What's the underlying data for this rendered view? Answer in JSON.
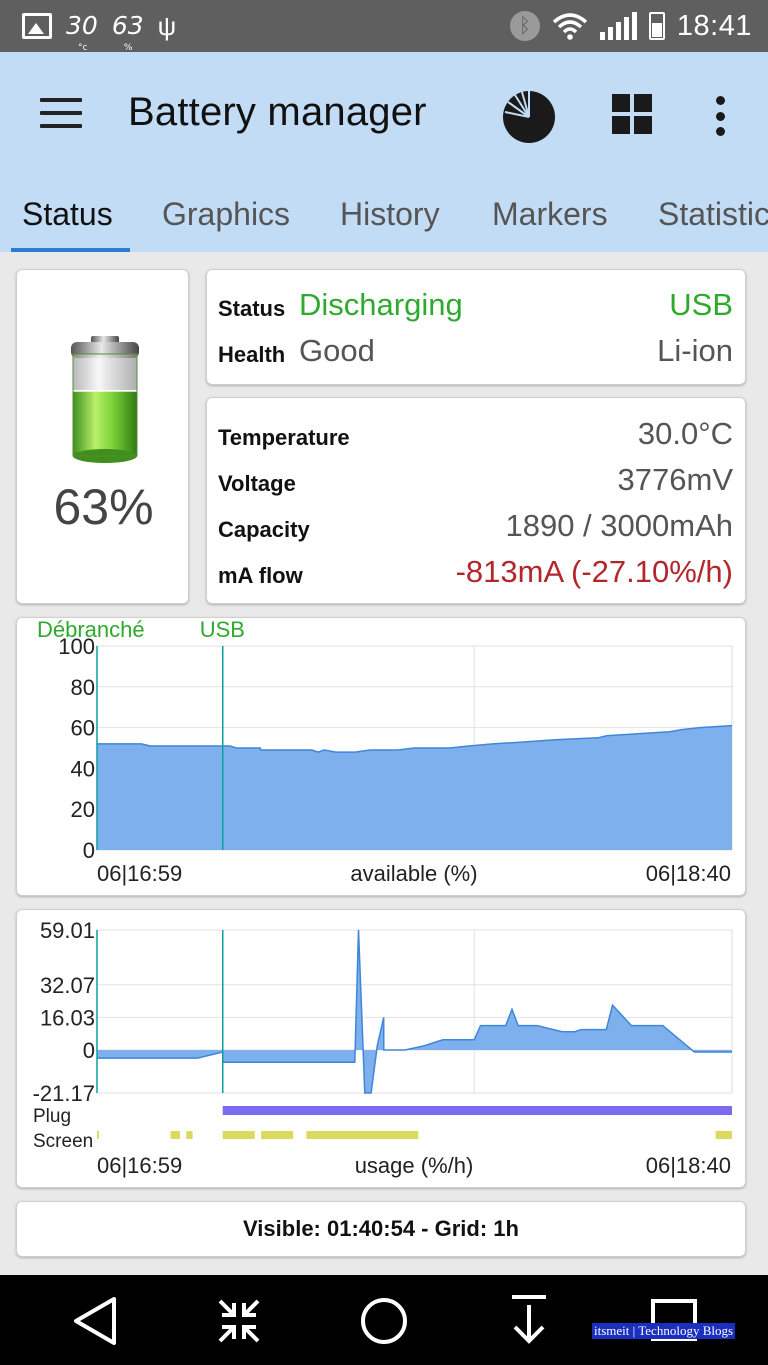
{
  "status_bar": {
    "temp_value": "30",
    "temp_unit": "°c",
    "battery_value": "63",
    "battery_unit": "%",
    "time": "18:41"
  },
  "app_bar": {
    "title": "Battery manager",
    "icons": [
      "menu-icon",
      "pie-chart-icon",
      "grid-icon",
      "more-vert-icon"
    ]
  },
  "tabs": [
    {
      "label": "Status",
      "active": true
    },
    {
      "label": "Graphics",
      "active": false
    },
    {
      "label": "History",
      "active": false
    },
    {
      "label": "Markers",
      "active": false
    },
    {
      "label": "Statistics",
      "active": false
    }
  ],
  "battery": {
    "percent_text": "63%",
    "level": 0.63
  },
  "status": {
    "status_label": "Status",
    "status_value": "Discharging",
    "source": "USB",
    "health_label": "Health",
    "health_value": "Good",
    "type": "Li-ion"
  },
  "info": {
    "temperature_label": "Temperature",
    "temperature_value": "30.0°C",
    "voltage_label": "Voltage",
    "voltage_value": "3776mV",
    "capacity_label": "Capacity",
    "capacity_value": "1890 / 3000mAh",
    "maflow_label": "mA flow",
    "maflow_value": "-813mA (-27.10%/h)"
  },
  "colors": {
    "accent": "#2b7cd6",
    "green": "#2eaa2e",
    "red": "#b3262a",
    "chart_fill": "#7fb0ee",
    "chart_line": "#3f86d8",
    "plug_bar": "#7b6bf0",
    "screen_bar": "#dada5e",
    "marker": "#0aa0a0"
  },
  "chart_data": [
    {
      "type": "area",
      "xlabel": "available (%)",
      "x_start_label": "06|16:59",
      "x_end_label": "06|18:40",
      "x_minutes": [
        0,
        3.58,
        6.85,
        7.07,
        8.48,
        11.85,
        14.37,
        18.11,
        19.38,
        21.15,
        22.17,
        23.22,
        25.95,
        26.02,
        28.27,
        30.56,
        34.11,
        35.21,
        36.1,
        38.02,
        41.06,
        43.42,
        45.26,
        47.85,
        50.45,
        53.04,
        56.1,
        59.14,
        62.97,
        68.11,
        72.96,
        79.7,
        81.05,
        86.04,
        91.07,
        93.02,
        95.93,
        101
      ],
      "values": [
        52,
        52,
        52,
        52,
        51,
        51,
        51,
        51,
        51,
        51,
        50,
        50,
        50,
        49,
        49,
        49,
        49,
        48,
        49,
        48,
        48,
        49,
        49,
        49,
        50,
        50,
        50,
        51,
        52,
        53,
        54,
        55,
        56,
        57,
        58,
        59,
        60,
        61
      ],
      "ylim": [
        0,
        100
      ],
      "yticks": [
        0,
        20,
        40,
        60,
        80,
        100
      ],
      "markers": [
        {
          "label": "Débranché",
          "x_minutes": 0
        },
        {
          "label": "USB",
          "x_minutes": 20
        }
      ]
    },
    {
      "type": "area",
      "xlabel": "usage (%/h)",
      "x_start_label": "06|16:59",
      "x_end_label": "06|18:40",
      "x_minutes": [
        0,
        16,
        20,
        20.01,
        41,
        41.6,
        42.6,
        43.6,
        44.6,
        45.6,
        45.61,
        49,
        52,
        55,
        60,
        61,
        65,
        66,
        67,
        70,
        74,
        76,
        77,
        81,
        82,
        85,
        90,
        95,
        101
      ],
      "values": [
        -4,
        -4,
        -1,
        -6,
        -6,
        59.01,
        -21.17,
        -21.17,
        2.5,
        16.03,
        0,
        0,
        2,
        5,
        5,
        12,
        12,
        20,
        12,
        12,
        9,
        9,
        10,
        10,
        22,
        12,
        12,
        -1,
        -1
      ],
      "ylim": [
        -21.17,
        59.01
      ],
      "yticks": [
        -21.17,
        0,
        16.03,
        32.07,
        59.01
      ],
      "plug_label": "Plug",
      "screen_label": "Screen",
      "plug_on": [
        [
          20,
          101
        ]
      ],
      "screen_on": [
        [
          0,
          0.3
        ],
        [
          11.7,
          13.2
        ],
        [
          14.2,
          15.2
        ],
        [
          20,
          25.1
        ],
        [
          26.1,
          31.2
        ],
        [
          33.3,
          51.1
        ],
        [
          98.4,
          101
        ]
      ]
    }
  ],
  "footer": {
    "text": "Visible: 01:40:54 - Grid: 1h"
  },
  "nav": {
    "icons": [
      "back-icon",
      "collapse-icon",
      "home-icon",
      "download-icon",
      "recents-icon"
    ]
  },
  "watermark": "itsmeit | Technology Blogs"
}
